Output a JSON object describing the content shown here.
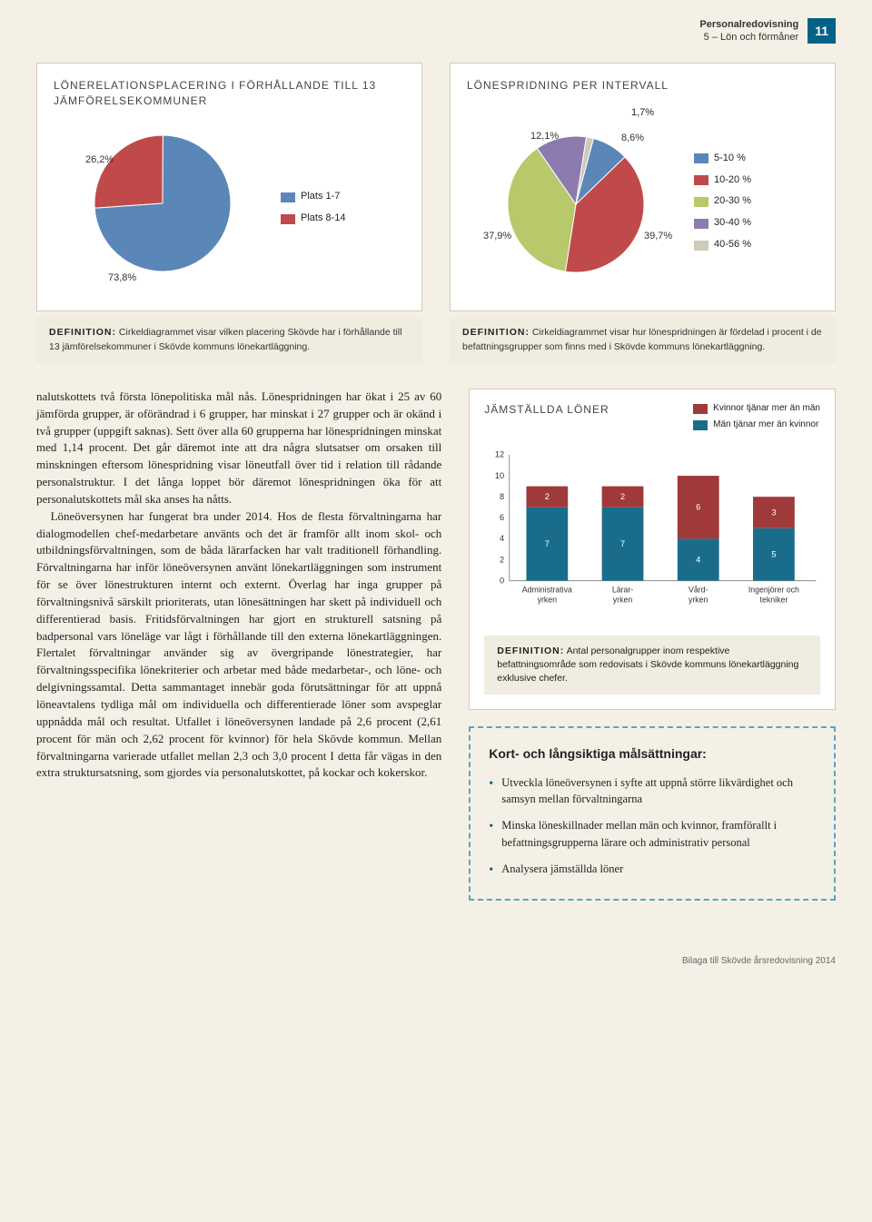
{
  "header": {
    "title": "Personalredovisning",
    "subtitle": "5 – Lön och förmåner",
    "page": "11"
  },
  "pie1": {
    "title": "LÖNERELATIONSPLACERING I FÖRHÅLLANDE TILL 13 JÄMFÖRELSEKOMMUNER",
    "slices": [
      {
        "label": "26,2%",
        "value": 26.2,
        "color": "#c04a4a"
      },
      {
        "label": "73,8%",
        "value": 73.8,
        "color": "#5a86b8"
      }
    ],
    "legend": [
      {
        "label": "Plats 1-7",
        "color": "#5a86b8"
      },
      {
        "label": "Plats 8-14",
        "color": "#c04a4a"
      }
    ]
  },
  "pie2": {
    "title": "LÖNESPRIDNING PER INTERVALL",
    "top_label": "1,7%",
    "slices": [
      {
        "label": "8,6%",
        "value": 8.6,
        "color": "#5a86b8"
      },
      {
        "label": "39,7%",
        "value": 39.7,
        "color": "#c04a4a"
      },
      {
        "label": "37,9%",
        "value": 37.9,
        "color": "#b7c96b"
      },
      {
        "label": "12,1%",
        "value": 12.1,
        "color": "#8d7bb0"
      },
      {
        "label": "1,7%",
        "value": 1.7,
        "color": "#d0cab8"
      }
    ],
    "legend": [
      {
        "label": "5-10 %",
        "color": "#5a86b8"
      },
      {
        "label": "10-20 %",
        "color": "#c04a4a"
      },
      {
        "label": "20-30 %",
        "color": "#b7c96b"
      },
      {
        "label": "30-40 %",
        "color": "#8d7bb0"
      },
      {
        "label": "40-56 %",
        "color": "#d0cab8"
      }
    ]
  },
  "def1": {
    "label": "DEFINITION:",
    "text": "Cirkeldiagrammet visar vilken placering Skövde har i förhållande till 13 jämförelsekommuner i Skövde kommuns lönekartläggning."
  },
  "def2": {
    "label": "DEFINITION:",
    "text": "Cirkeldiagrammet visar hur lönespridningen är fördelad i procent i de befattningsgrupper som finns med i Skövde kommuns lönekartläggning."
  },
  "body": {
    "p1": "nalutskottets två första lönepolitiska mål nås. Lönespridningen har ökat i 25 av 60 jämförda grupper, är oförändrad i 6 grupper, har minskat i 27 grupper och är okänd i två grupper (uppgift saknas). Sett över alla 60 grupperna har lönespridningen minskat med 1,14 procent. Det går däremot inte att dra några slutsatser om orsaken till minskningen eftersom lönespridning visar löneutfall över tid i relation till rådande personalstruktur. I det långa loppet bör däremot lönespridningen öka för att personalutskottets mål ska anses ha nåtts.",
    "p2": "Löneöversynen har fungerat bra under 2014. Hos de flesta förvaltningarna har dialogmodellen chef-medarbetare använts och det är framför allt inom skol- och utbildningsförvaltningen, som de båda lärarfacken har valt traditionell förhandling. Förvaltningarna har inför löneöversynen använt lönekartläggningen som instrument för se över lönestrukturen internt och externt. Överlag har inga grupper på förvaltningsnivå särskilt prioriterats, utan lönesättningen har skett på individuell och differentierad basis. Fritidsförvaltningen har gjort en strukturell satsning på badpersonal vars löneläge var lågt i förhållande till den externa lönekartläggningen. Flertalet förvaltningar använder sig av övergripande lönestrategier, har förvaltningsspecifika lönekriterier och arbetar med både medarbetar-, och löne- och delgivningssamtal. Detta sammantaget innebär goda förutsättningar för att uppnå löneavtalens tydliga mål om individuella och differentierade löner som avspeglar uppnådda mål och resultat. Utfallet i löneöversynen landade på 2,6 procent (2,61 procent för män och 2,62 procent för kvinnor) för hela Skövde kommun. Mellan förvaltningarna varierade utfallet mellan 2,3 och 3,0 procent I detta får vägas in den extra struktursatsning, som gjordes via personalutskottet, på kockar och kokerskor."
  },
  "bar": {
    "title": "JÄMSTÄLLDA LÖNER",
    "legend": [
      {
        "label": "Kvinnor tjänar mer än män",
        "color": "#a03939"
      },
      {
        "label": "Män tjänar mer än kvinnor",
        "color": "#1a6d8a"
      }
    ],
    "ymax": 12,
    "yticks": [
      0,
      2,
      4,
      6,
      8,
      10,
      12
    ],
    "categories": [
      {
        "label": "Administrativa yrken",
        "red": 2,
        "blue": 7
      },
      {
        "label": "Lärar- yrken",
        "red": 2,
        "blue": 7
      },
      {
        "label": "Vård- yrken",
        "red": 6,
        "blue": 4
      },
      {
        "label": "Ingenjörer och tekniker",
        "red": 3,
        "blue": 5
      }
    ],
    "colors": {
      "red": "#a03939",
      "blue": "#1a6d8a"
    },
    "def_label": "DEFINITION:",
    "def_text": "Antal personalgrupper inom respektive befattningsområde som redovisats i Skövde kommuns lönekartläggning exklusive chefer."
  },
  "goals": {
    "title": "Kort- och långsiktiga målsättningar:",
    "items": [
      "Utveckla löneöversynen i syfte att uppnå större likvärdighet och samsyn mellan förvaltningarna",
      "Minska löneskillnader mellan män och kvinnor, framförallt i befattningsgrupperna lärare och administrativ personal",
      "Analysera jämställda löner"
    ]
  },
  "footer": "Bilaga till Skövde årsredovisning 2014"
}
